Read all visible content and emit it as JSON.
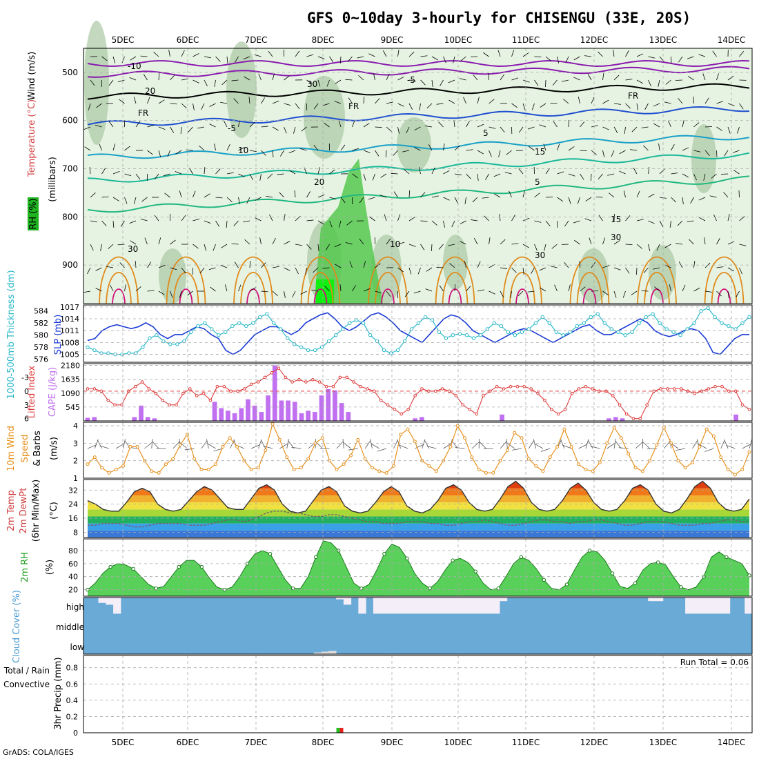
{
  "title": "GFS 0~10day 3-hourly for CHISENGU (33E, 20S)",
  "footer": "GrADS: COLA/IGES",
  "colors": {
    "rh_green": "#1fb41f",
    "temp_purple": "#8a1bb0",
    "temp_blue": "#1f4fd0",
    "temp_cyan": "#18a0c8",
    "temp_teal": "#19b89a",
    "temp_orange": "#e08a1a",
    "temp_magenta": "#d0107a",
    "slp_line": "#1a3ad6",
    "thickness_line": "#2ab8c8",
    "lifted_index_line": "#e03a3a",
    "cape_bar": "#c070f0",
    "wind_speed_line": "#e8901c",
    "cloud_fill": "#6aaad6",
    "cloud_clear": "#f4eef8",
    "rh2m_fill": "#22c022",
    "precip_total": "#22c022",
    "precip_conv": "#e82020"
  },
  "chart_data": [
    {
      "type": "heatmap",
      "panel": "upper-air",
      "x_dates": [
        "5DEC",
        "6DEC",
        "7DEC",
        "8DEC",
        "9DEC",
        "10DEC",
        "11DEC",
        "12DEC",
        "13DEC",
        "14DEC"
      ],
      "ylabel": "(millibars)",
      "y_ticks": [
        500,
        600,
        700,
        800,
        900
      ],
      "side_labels": [
        "Wind (m/s)",
        "Temperature (°C)",
        "RH (%)"
      ],
      "contour_labels": [
        "-10",
        "-5",
        "FR",
        "FR",
        "FR",
        "-5",
        "5",
        "10",
        "15",
        "20",
        "5",
        "10",
        "15",
        "20",
        "30",
        "30",
        "30",
        "30"
      ]
    },
    {
      "type": "line",
      "panel": "slp-thickness",
      "left_label": "1000-500mb Thickness (dm)",
      "right_label": "SLP (mb)",
      "thickness_ticks": [
        576,
        578,
        580,
        582,
        584
      ],
      "slp_ticks": [
        1005,
        1008,
        1011,
        1014,
        1017
      ],
      "series": [
        {
          "name": "SLP (mb)",
          "values": [
            1008.5,
            1009,
            1011,
            1012,
            1012.5,
            1012,
            1011.5,
            1012,
            1013,
            1012,
            1010,
            1009,
            1010,
            1010,
            1011,
            1012,
            1011.5,
            1010,
            1009,
            1006,
            1005,
            1006,
            1008,
            1010,
            1011,
            1012,
            1012,
            1011,
            1010,
            1011,
            1013,
            1014,
            1015,
            1015.5,
            1014,
            1012,
            1011,
            1012,
            1013.5,
            1015,
            1015.5,
            1014.5,
            1013,
            1011,
            1010,
            1009,
            1008,
            1010,
            1012,
            1014,
            1015,
            1014.5,
            1013,
            1011,
            1010,
            1009,
            1008,
            1009,
            1010,
            1011,
            1011.5,
            1011,
            1010,
            1009,
            1008,
            1009,
            1010,
            1011,
            1012,
            1012.5,
            1011,
            1010,
            1010,
            1011,
            1012,
            1013,
            1014,
            1013,
            1011,
            1010,
            1009.5,
            1010,
            1011,
            1011.5,
            1011,
            1009,
            1005.5,
            1005,
            1007,
            1009,
            1010,
            1010
          ]
        },
        {
          "name": "1000-500mb Thickness (dm)",
          "values": [
            578,
            577.5,
            577,
            577,
            576.8,
            576.8,
            577,
            577,
            578,
            579.5,
            580,
            579,
            578.5,
            578.5,
            579,
            580.5,
            581.5,
            582,
            581,
            580,
            580.5,
            581.5,
            582,
            581.5,
            582,
            583,
            583.5,
            582,
            581,
            579.5,
            578.5,
            578,
            577.5,
            577.5,
            578,
            579,
            580,
            581,
            582,
            582.5,
            582,
            580,
            579,
            577.5,
            577,
            577.5,
            579,
            581,
            582,
            583,
            582.5,
            580.5,
            579.5,
            580,
            580.2,
            580,
            579.5,
            580,
            581,
            582,
            581.5,
            580.5,
            580,
            580.5,
            581,
            582,
            583,
            582,
            580.5,
            580,
            580.5,
            581.5,
            582,
            583,
            583.5,
            582,
            581,
            580.5,
            580,
            580.5,
            582,
            583,
            583.5,
            582,
            581,
            580.5,
            580,
            581,
            582,
            584,
            584.5,
            583,
            582,
            581.5,
            581,
            582,
            583
          ]
        }
      ]
    },
    {
      "type": "bar",
      "panel": "lifted-index-cape",
      "left_label": "Lifted Index",
      "right_label": "CAPE (J/kg)",
      "li_ticks": [
        -3,
        0,
        3,
        6
      ],
      "cape_ticks": [
        545,
        1090,
        1635,
        2180
      ],
      "series": [
        {
          "name": "CAPE (J/kg)",
          "values": [
            120,
            150,
            0,
            0,
            0,
            0,
            0,
            150,
            600,
            150,
            100,
            0,
            0,
            0,
            0,
            0,
            0,
            0,
            0,
            750,
            500,
            400,
            300,
            500,
            850,
            600,
            350,
            1000,
            2180,
            800,
            800,
            750,
            300,
            400,
            350,
            1000,
            1250,
            1200,
            700,
            350,
            0,
            0,
            0,
            0,
            0,
            0,
            0,
            0,
            0,
            100,
            150,
            0,
            0,
            0,
            0,
            0,
            0,
            0,
            0,
            0,
            0,
            0,
            250,
            0,
            0,
            0,
            0,
            0,
            0,
            0,
            0,
            0,
            0,
            0,
            0,
            0,
            0,
            0,
            100,
            150,
            100,
            0,
            0,
            0,
            0,
            0,
            0,
            0,
            0,
            0,
            0,
            0,
            0,
            0,
            0,
            0,
            0,
            250,
            0,
            0
          ]
        },
        {
          "name": "Lifted Index",
          "values": [
            -0.5,
            -0.5,
            0,
            2,
            3,
            3,
            0,
            -1,
            -2,
            -0.5,
            0.5,
            2,
            3,
            3,
            0.5,
            -0.5,
            1,
            0.5,
            2,
            -1,
            -1,
            0,
            0,
            -0.5,
            -1.5,
            -2,
            -3,
            -4,
            -5,
            -3,
            -2,
            -2.5,
            -2,
            -2.5,
            -2,
            -1,
            -1,
            -3,
            -3,
            -2,
            -1,
            -0.5,
            0,
            2,
            3,
            4,
            5,
            4,
            1,
            -0.5,
            0,
            0,
            -0.5,
            0,
            1,
            3,
            4,
            5,
            1,
            0,
            -1,
            -0.5,
            -1,
            -1,
            -1,
            -0.5,
            0.5,
            2,
            4,
            5,
            4,
            0.5,
            -0.5,
            -1,
            -0.5,
            0,
            0,
            1,
            3,
            5,
            6,
            6,
            3,
            0,
            -0.5,
            -0.5,
            -0.5,
            -0.5,
            0,
            0.5,
            0,
            -0.5,
            -1,
            -1,
            0,
            0,
            3,
            4
          ]
        }
      ]
    },
    {
      "type": "line",
      "panel": "10m-wind",
      "ylabel": "10m Wind Speed & Barbs (m/s)",
      "y_ticks": [
        1,
        2,
        3,
        4
      ],
      "ylim": [
        1,
        4.2
      ],
      "series": [
        {
          "name": "Speed",
          "values": [
            1.8,
            2.2,
            1.6,
            1.3,
            1.5,
            1.7,
            2.8,
            2.8,
            2,
            1.4,
            1.3,
            1.8,
            2.1,
            2.9,
            3.5,
            2.1,
            1.5,
            1.5,
            1.8,
            2.8,
            3.3,
            2.8,
            2,
            1.5,
            1.6,
            2.6,
            4.1,
            3.2,
            2.2,
            1.5,
            1.6,
            2.1,
            3,
            3.3,
            2,
            1.5,
            1.8,
            2.3,
            3.2,
            2.1,
            1.6,
            1.4,
            1.3,
            1.7,
            3.5,
            3.8,
            3.1,
            2,
            1.7,
            1.4,
            2,
            2.8,
            4,
            3.3,
            2.2,
            1.5,
            1.3,
            1.3,
            2,
            2.6,
            3.6,
            3.3,
            2.1,
            1.7,
            1.4,
            2.2,
            2.8,
            3.8,
            2.8,
            1.8,
            1.5,
            1.4,
            1.9,
            3,
            3.9,
            3.3,
            2.4,
            1.6,
            1.4,
            2,
            2.9,
            3.9,
            3,
            2,
            1.6,
            1.9,
            2.8,
            3.8,
            3.4,
            2.2,
            1.5,
            1.2,
            1.5,
            2.5
          ]
        }
      ]
    },
    {
      "type": "area",
      "panel": "2m-temp",
      "ylabel": "2m Temp / 2m DewPt (6hr Min/Max) (°C)",
      "y_ticks": [
        8,
        16,
        24,
        32
      ],
      "ylim": [
        5,
        38
      ],
      "series": [
        {
          "name": "2m Temp",
          "values": [
            26,
            24,
            21,
            20,
            20,
            25,
            31,
            33,
            31,
            24,
            21,
            20,
            21,
            26,
            31,
            34,
            32,
            27,
            22,
            21,
            21,
            27,
            33,
            35,
            32,
            24,
            20,
            19,
            20,
            26,
            32,
            34,
            31,
            23,
            20,
            19,
            20,
            25,
            31,
            34,
            31,
            23,
            20,
            19,
            21,
            26,
            33,
            35,
            32,
            25,
            21,
            20,
            21,
            27,
            34,
            37,
            33,
            25,
            21,
            20,
            21,
            26,
            33,
            36,
            32,
            25,
            21,
            20,
            21,
            26,
            33,
            35,
            32,
            24,
            20,
            19,
            21,
            27,
            34,
            37,
            33,
            25,
            21,
            20,
            21,
            27
          ]
        },
        {
          "name": "2m DewPt",
          "values": [
            12,
            12,
            13,
            13,
            13,
            12,
            11,
            11,
            12,
            13,
            13,
            13,
            13,
            12,
            12,
            12,
            13,
            14,
            15,
            15,
            14,
            15,
            17,
            19,
            20,
            20,
            19,
            19,
            18,
            17,
            17,
            18,
            18,
            17,
            16,
            15,
            14,
            14,
            13,
            13,
            13,
            14,
            14,
            14,
            13,
            13,
            12,
            12,
            13,
            14,
            14,
            15,
            14,
            13,
            12,
            12,
            13,
            14,
            15,
            15,
            14,
            14,
            13,
            14,
            14,
            15,
            15,
            14,
            13,
            12,
            12,
            13,
            14,
            14,
            14,
            13,
            12,
            12,
            12,
            13,
            13,
            14,
            15,
            15,
            14,
            14
          ]
        }
      ]
    },
    {
      "type": "area",
      "panel": "2m-rh",
      "ylabel": "2m RH (%)",
      "y_ticks": [
        20,
        40,
        60,
        80
      ],
      "ylim": [
        10,
        98
      ],
      "series": [
        {
          "name": "2m RH",
          "values": [
            20,
            30,
            45,
            55,
            60,
            58,
            52,
            40,
            28,
            22,
            25,
            40,
            55,
            65,
            65,
            55,
            38,
            24,
            20,
            24,
            40,
            60,
            75,
            80,
            75,
            55,
            35,
            22,
            22,
            40,
            70,
            95,
            92,
            80,
            55,
            30,
            22,
            28,
            50,
            75,
            90,
            85,
            68,
            45,
            30,
            22,
            32,
            50,
            65,
            68,
            62,
            48,
            30,
            20,
            22,
            40,
            60,
            70,
            65,
            52,
            35,
            22,
            20,
            28,
            50,
            70,
            80,
            78,
            65,
            45,
            25,
            22,
            30,
            50,
            60,
            62,
            58,
            40,
            24,
            20,
            24,
            40,
            70,
            78,
            70,
            65,
            60,
            42
          ]
        }
      ]
    },
    {
      "type": "bar",
      "panel": "cloud-cover",
      "ylabel": "Cloud Cover (%)",
      "y_ticks": [
        "high",
        "middle",
        "low"
      ],
      "series": [
        {
          "name": "high (clear fraction)",
          "values": [
            0,
            0,
            0.3,
            0.4,
            0.9,
            0,
            0,
            0,
            0,
            0,
            0,
            0,
            0,
            0,
            0,
            0,
            0,
            0,
            0,
            0,
            0,
            0,
            0,
            0,
            0,
            0,
            0,
            0,
            0,
            0,
            0,
            0,
            0,
            0,
            0.1,
            0.4,
            0,
            0.9,
            0,
            0.9,
            0.9,
            0.9,
            0.9,
            0.9,
            0.9,
            0.9,
            0.9,
            0.9,
            0.9,
            0.9,
            0.9,
            0.9,
            0.9,
            0.9,
            0.9,
            0.9,
            0.2,
            0,
            0,
            0,
            0,
            0,
            0,
            0,
            0,
            0,
            0,
            0,
            0,
            0,
            0,
            0,
            0,
            0,
            0,
            0,
            0.2,
            0.2,
            0,
            0,
            0,
            0.9,
            0.9,
            0.9,
            0.9,
            0.9,
            0.9,
            0,
            0,
            0.9
          ]
        },
        {
          "name": "low (clear fraction)",
          "values": [
            0,
            0,
            0,
            0,
            0,
            0,
            0,
            0,
            0,
            0,
            0,
            0,
            0,
            0,
            0,
            0,
            0,
            0,
            0,
            0,
            0,
            0,
            0,
            0,
            0,
            0,
            0,
            0,
            0,
            0,
            0,
            0.1,
            0.15,
            0.2,
            0,
            0,
            0,
            0,
            0,
            0,
            0,
            0,
            0,
            0,
            0,
            0,
            0,
            0,
            0,
            0,
            0,
            0,
            0,
            0,
            0,
            0,
            0,
            0,
            0,
            0,
            0,
            0,
            0,
            0,
            0,
            0,
            0,
            0,
            0,
            0,
            0,
            0,
            0,
            0,
            0,
            0,
            0,
            0,
            0,
            0,
            0,
            0,
            0,
            0,
            0,
            0,
            0,
            0,
            0,
            0
          ]
        }
      ]
    },
    {
      "type": "bar",
      "panel": "3hr-precip",
      "ylabel": "3hr Precip (mm)",
      "legend": [
        "Total / Rain",
        "Convective"
      ],
      "annotation": "Run Total = 0.06",
      "y_ticks": [
        0,
        0.2,
        0.4,
        0.6,
        0.8
      ],
      "ylim": [
        0,
        0.95
      ],
      "x_dates": [
        "5DEC",
        "6DEC",
        "7DEC",
        "8DEC",
        "9DEC",
        "10DEC",
        "11DEC",
        "12DEC",
        "13DEC",
        "14DEC"
      ],
      "series": [
        {
          "name": "Total / Rain",
          "values": [
            {
              "x": "8DEC 06h",
              "y": 0.06
            }
          ]
        },
        {
          "name": "Convective",
          "values": [
            {
              "x": "8DEC 06h",
              "y": 0.06
            }
          ]
        }
      ]
    }
  ]
}
